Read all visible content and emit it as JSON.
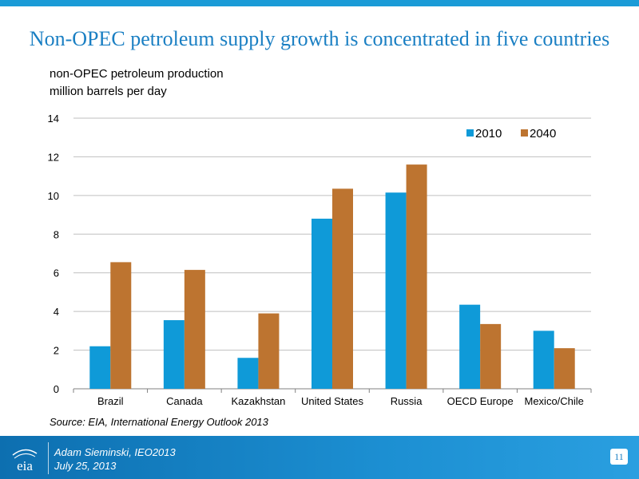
{
  "title": "Non-OPEC petroleum supply growth is concentrated in five countries",
  "subtitle_line1": "non-OPEC petroleum production",
  "subtitle_line2": "million barrels per day",
  "source": "Source:  EIA, International Energy Outlook 2013",
  "footer": {
    "author": "Adam Sieminski, IEO2013",
    "date": "July 25, 2013",
    "page": "11",
    "logo": "eia"
  },
  "chart_data": {
    "type": "bar",
    "categories": [
      "Brazil",
      "Canada",
      "Kazakhstan",
      "United States",
      "Russia",
      "OECD Europe",
      "Mexico/Chile"
    ],
    "series": [
      {
        "name": "2010",
        "color": "#0f9ad8",
        "values": [
          2.2,
          3.55,
          1.6,
          8.8,
          10.15,
          4.35,
          3.0
        ]
      },
      {
        "name": "2040",
        "color": "#bd7430",
        "values": [
          6.55,
          6.15,
          3.9,
          10.35,
          11.6,
          3.35,
          2.1
        ]
      }
    ],
    "ylim": [
      0,
      14
    ],
    "yticks": [
      0,
      2,
      4,
      6,
      8,
      10,
      12,
      14
    ],
    "grid": true,
    "legend_position": "top-right"
  }
}
